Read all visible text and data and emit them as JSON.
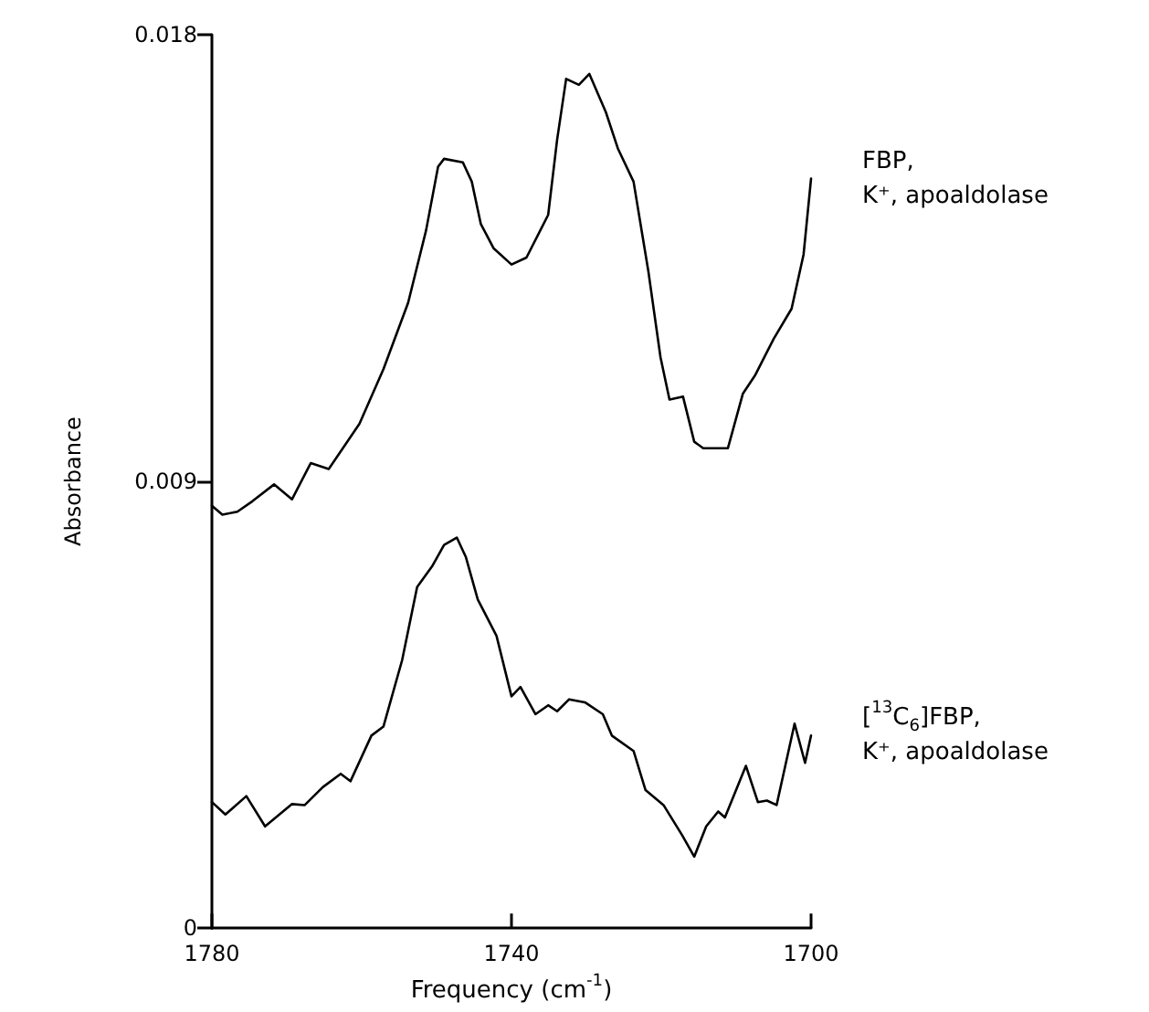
{
  "chart_data": {
    "type": "line",
    "xlabel": "Frequency (cm$^{-1}$)",
    "ylabel": "Absorbance",
    "xlim": [
      1780,
      1700
    ],
    "xticks": [
      1780,
      1740,
      1700
    ],
    "ylim": [
      0,
      0.018
    ],
    "yticks": [
      0,
      0.009,
      0.018
    ],
    "grid": false,
    "marker": "none",
    "line_style": "solid",
    "series": [
      {
        "name": "FBP,\nK⁺, apoaldolase",
        "color": "#000000",
        "x": [
          1780,
          1778.6,
          1776.6,
          1774.6,
          1771.7,
          1769.3,
          1766.8,
          1764.4,
          1760.3,
          1757.1,
          1753.8,
          1751.4,
          1749.8,
          1749,
          1746.5,
          1745.3,
          1744.1,
          1742.4,
          1740,
          1738,
          1735.1,
          1733.9,
          1732.7,
          1731,
          1729.6,
          1727.4,
          1725.8,
          1723.7,
          1721.7,
          1720.1,
          1718.9,
          1717.1,
          1715.6,
          1714.4,
          1712.8,
          1711.1,
          1709.1,
          1707.5,
          1705,
          1702.6,
          1701,
          1700
        ],
        "values": [
          0.00851,
          0.00833,
          0.00839,
          0.0086,
          0.00894,
          0.00864,
          0.00937,
          0.00925,
          0.01016,
          0.01126,
          0.0126,
          0.01406,
          0.01534,
          0.0155,
          0.01543,
          0.01504,
          0.01419,
          0.0137,
          0.01337,
          0.01351,
          0.01437,
          0.01589,
          0.01711,
          0.01699,
          0.01721,
          0.01644,
          0.01571,
          0.01504,
          0.01321,
          0.0115,
          0.01065,
          0.01071,
          0.0098,
          0.00967,
          0.00967,
          0.00967,
          0.01077,
          0.01113,
          0.01187,
          0.01248,
          0.01357,
          0.0151
        ]
      },
      {
        "name": "[$^{13}$C$_{6}$]FBP,\nK⁺, apoaldolase",
        "color": "#000000",
        "x": [
          1780,
          1778.2,
          1775.4,
          1772.9,
          1769.3,
          1767.6,
          1765.2,
          1762.8,
          1761.5,
          1758.7,
          1757.1,
          1754.6,
          1752.6,
          1750.6,
          1749,
          1747.3,
          1746.1,
          1744.5,
          1742,
          1740,
          1738.8,
          1736.8,
          1735.1,
          1733.9,
          1732.3,
          1730.2,
          1727.8,
          1726.6,
          1723.7,
          1722.1,
          1719.7,
          1717.2,
          1715.6,
          1714,
          1712.4,
          1711.5,
          1708.7,
          1707.1,
          1705.9,
          1704.6,
          1702.2,
          1700.8,
          1700
        ],
        "values": [
          0.00254,
          0.00229,
          0.00266,
          0.00205,
          0.0025,
          0.00248,
          0.00284,
          0.00311,
          0.00296,
          0.00388,
          0.00406,
          0.0054,
          0.00687,
          0.00729,
          0.00772,
          0.00787,
          0.00748,
          0.00662,
          0.00589,
          0.00467,
          0.00486,
          0.00431,
          0.00449,
          0.00437,
          0.00461,
          0.00455,
          0.00431,
          0.00388,
          0.00357,
          0.00278,
          0.00248,
          0.00187,
          0.00144,
          0.00205,
          0.00235,
          0.00223,
          0.00327,
          0.00254,
          0.00257,
          0.00248,
          0.00412,
          0.00333,
          0.00388
        ]
      }
    ]
  }
}
